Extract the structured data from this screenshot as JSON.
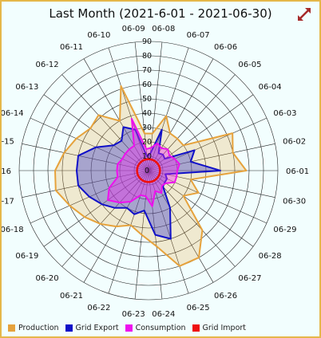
{
  "title": "Last Month (2021-6-01 - 2021-06-30)",
  "toolbar": {
    "expand_icon": "expand-arrows-icon"
  },
  "colors": {
    "production": "#e6a23c",
    "production_fill": "rgba(230,170,70,0.25)",
    "grid_export": "#1010c8",
    "grid_export_fill": "rgba(60,60,200,0.40)",
    "consumption": "#ee10ee",
    "consumption_fill": "rgba(238,40,238,0.40)",
    "grid_import": "#ee1010",
    "grid_line": "#222222",
    "expand_icon": "#a52a2a"
  },
  "chart_data": {
    "type": "radar",
    "title": "Last Month (2021-6-01 - 2021-06-30)",
    "rlim": [
      0,
      90
    ],
    "r_ticks": [
      0,
      10,
      20,
      30,
      40,
      50,
      60,
      70,
      80,
      90
    ],
    "r_tick_labels": [
      "0",
      "10",
      "20",
      "30",
      "40",
      "50",
      "60",
      "70",
      "80",
      "90"
    ],
    "grid": true,
    "legend_position": "bottom-left",
    "categories": [
      "06-01",
      "06-02",
      "06-03",
      "06-04",
      "06-05",
      "06-06",
      "06-07",
      "06-08",
      "06-09",
      "06-10",
      "06-11",
      "06-12",
      "06-13",
      "06-14",
      "06-15",
      "06-16",
      "06-17",
      "06-18",
      "06-19",
      "06-20",
      "06-21",
      "06-22",
      "06-23",
      "06-24",
      "06-25",
      "06-26",
      "06-27",
      "06-28",
      "06-29",
      "06-30"
    ],
    "series": [
      {
        "name": "Production",
        "key": "production",
        "values": [
          68,
          60,
          64,
          30,
          30,
          30,
          40,
          26,
          26,
          62,
          40,
          52,
          50,
          55,
          60,
          65,
          66,
          60,
          55,
          50,
          45,
          40,
          45,
          53,
          70,
          70,
          56,
          30,
          38,
          30
        ]
      },
      {
        "name": "Grid Export",
        "key": "grid_export",
        "values": [
          50,
          30,
          35,
          14,
          15,
          14,
          30,
          12,
          10,
          30,
          35,
          28,
          30,
          40,
          50,
          50,
          50,
          45,
          40,
          35,
          30,
          32,
          28,
          45,
          50,
          30,
          15,
          14,
          14,
          12
        ]
      },
      {
        "name": "Consumption",
        "key": "consumption",
        "values": [
          20,
          22,
          20,
          18,
          20,
          18,
          20,
          16,
          15,
          38,
          20,
          20,
          20,
          20,
          22,
          22,
          22,
          30,
          35,
          30,
          25,
          18,
          18,
          25,
          15,
          18,
          14,
          15,
          20,
          20
        ]
      },
      {
        "name": "Grid Import",
        "key": "grid_import",
        "values": [
          8,
          8,
          8,
          8,
          8,
          8,
          8,
          8,
          8,
          8,
          8,
          8,
          8,
          8,
          8,
          8,
          8,
          8,
          8,
          8,
          8,
          8,
          8,
          8,
          8,
          8,
          8,
          8,
          8,
          8
        ]
      }
    ]
  }
}
